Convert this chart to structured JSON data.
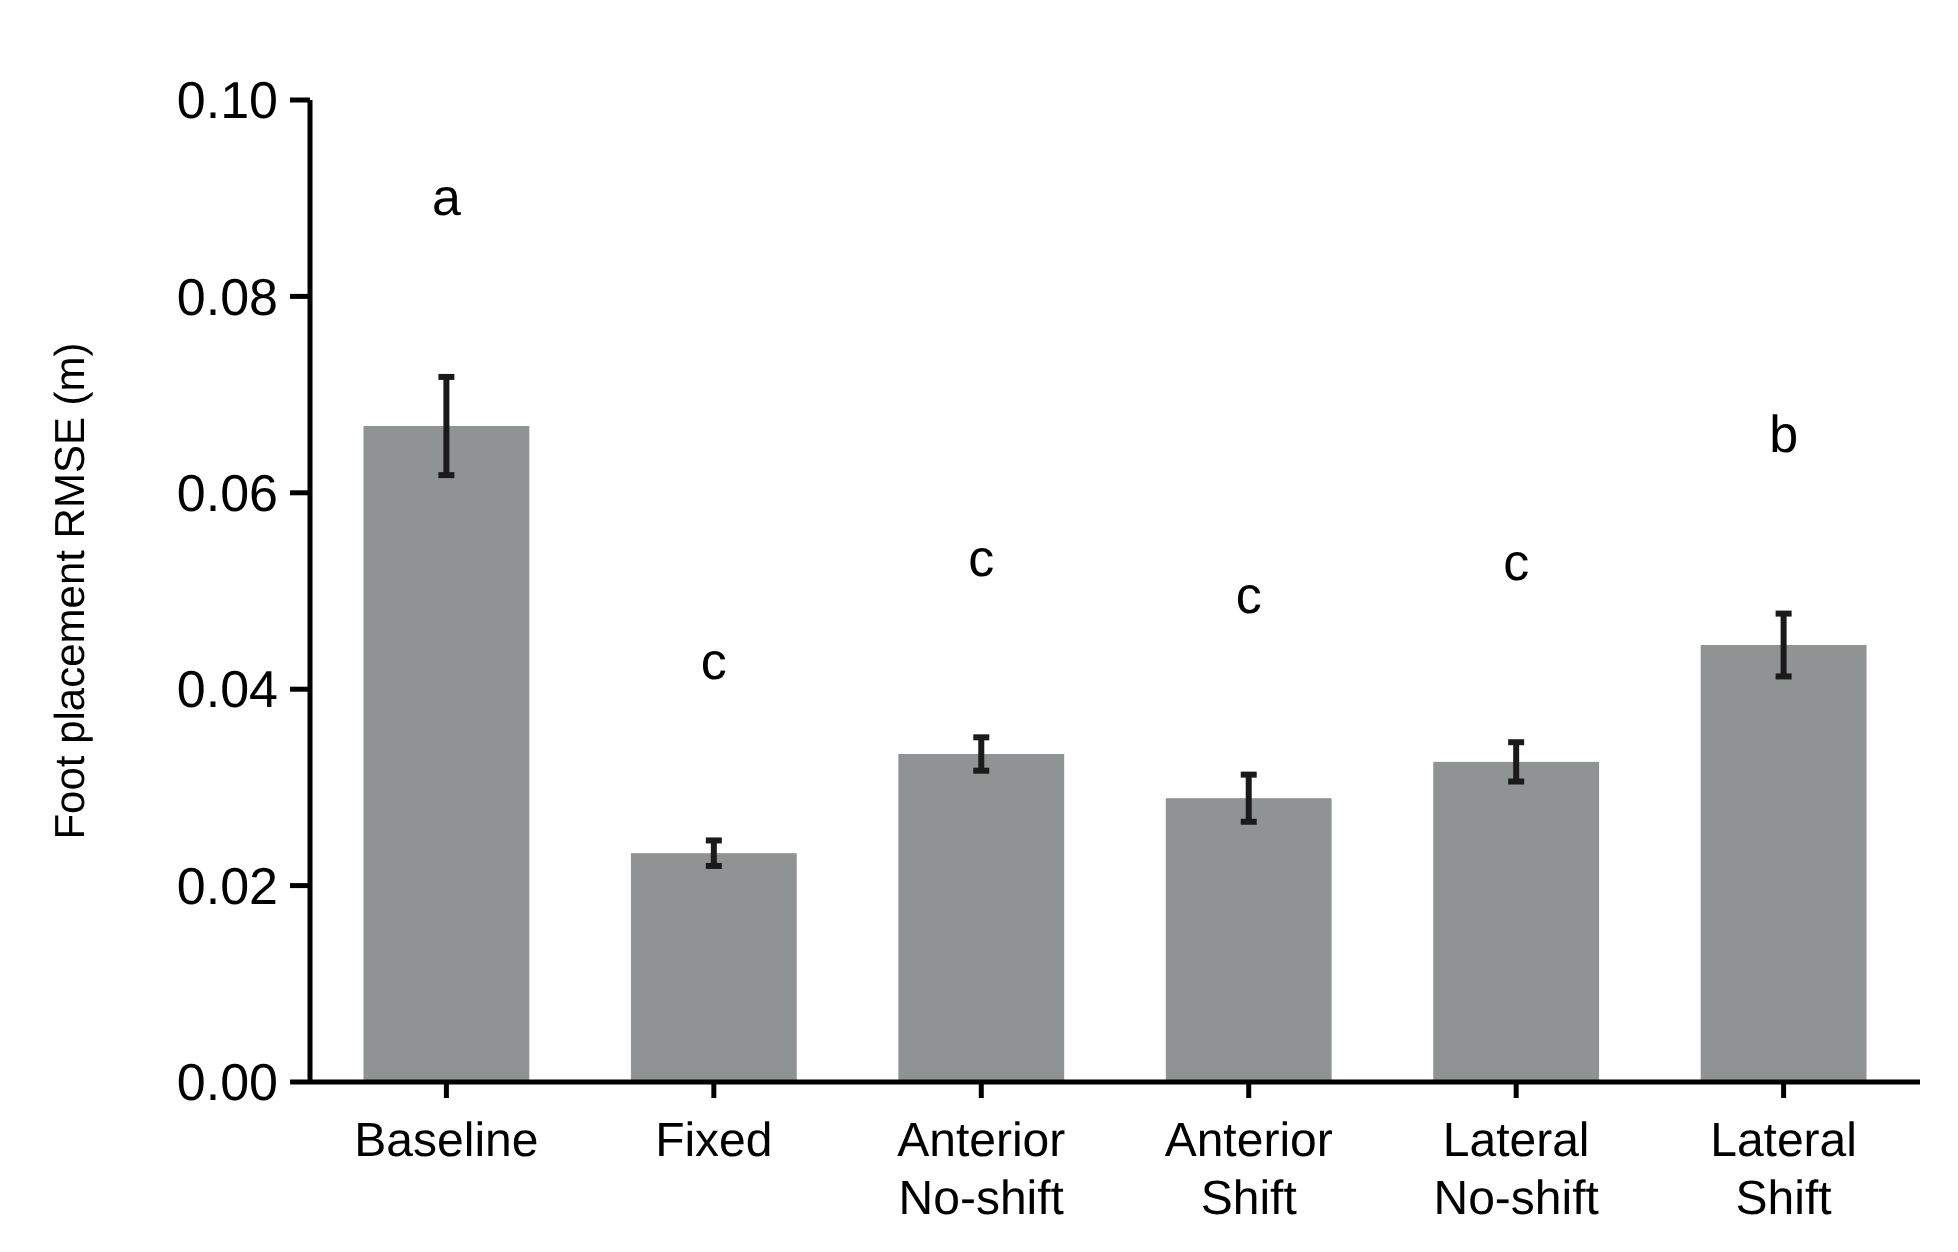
{
  "chart_data": {
    "type": "bar",
    "ylabel": "Foot placement  RMSE (m)",
    "categories": [
      "Baseline",
      "Fixed",
      "Anterior No-shift",
      "Anterior Shift",
      "Lateral No-shift",
      "Lateral Shift"
    ],
    "values": [
      0.0668,
      0.0233,
      0.0334,
      0.0289,
      0.0326,
      0.0445
    ],
    "errors": [
      0.005,
      0.0013,
      0.0017,
      0.0024,
      0.002,
      0.0032
    ],
    "color": "#909393",
    "ylim": [
      0,
      0.1
    ],
    "yticks": [
      {
        "value": 0,
        "label": "0.00"
      },
      {
        "value": 0.02,
        "label": "0.02"
      },
      {
        "value": 0.04,
        "label": "0.04"
      },
      {
        "value": 0.06,
        "label": "0.06"
      },
      {
        "value": 0.08,
        "label": "0.08"
      },
      {
        "value": 0.1,
        "label": "0.10"
      }
    ],
    "grid": false,
    "annotations": [
      "a",
      "c",
      "c",
      "c",
      "c",
      "b"
    ]
  }
}
